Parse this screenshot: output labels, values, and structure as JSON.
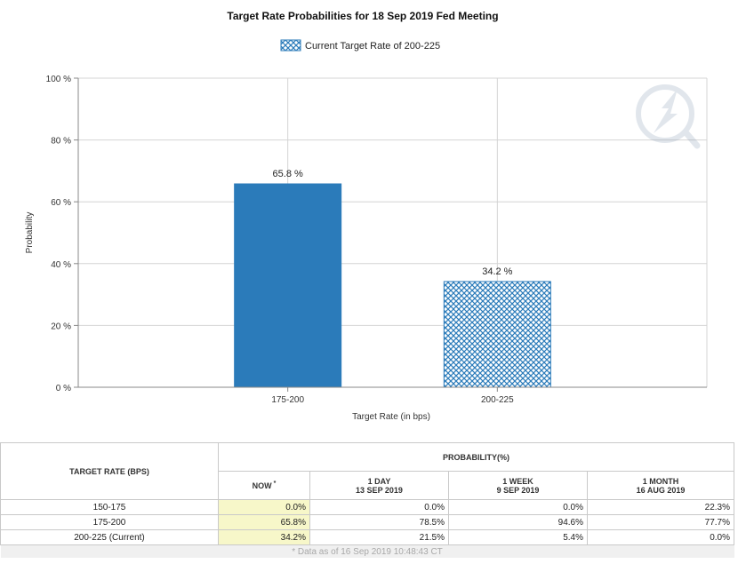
{
  "chart_data": {
    "type": "bar",
    "title": "Target Rate Probabilities for 18 Sep 2019 Fed Meeting",
    "xlabel": "Target Rate (in bps)",
    "ylabel": "Probability",
    "ylim": [
      0,
      100
    ],
    "yticks": [
      0,
      20,
      40,
      60,
      80,
      100
    ],
    "ytick_suffix": " %",
    "categories": [
      "175-200",
      "200-225"
    ],
    "values": [
      65.8,
      34.2
    ],
    "data_labels": [
      "65.8 %",
      "34.2 %"
    ],
    "bar_styles": [
      "solid",
      "hatched"
    ],
    "legend": {
      "label": "Current Target Rate of 200-225",
      "position": "top-center"
    },
    "grid": true,
    "colors": {
      "bar": "#2b7bba",
      "hatch_bg": "#ffffff",
      "grid": "#d4d4d4"
    }
  },
  "table": {
    "target_header": "TARGET RATE (BPS)",
    "probability_header": "PROBABILITY(%)",
    "columns": [
      {
        "line1": "NOW",
        "line2": "",
        "marker": "*"
      },
      {
        "line1": "1 DAY",
        "line2": "13 SEP 2019",
        "marker": ""
      },
      {
        "line1": "1 WEEK",
        "line2": "9 SEP 2019",
        "marker": ""
      },
      {
        "line1": "1 MONTH",
        "line2": "16 AUG 2019",
        "marker": ""
      }
    ],
    "rows": [
      {
        "label": "150-175",
        "values": [
          "0.0%",
          "0.0%",
          "0.0%",
          "22.3%"
        ]
      },
      {
        "label": "175-200",
        "values": [
          "65.8%",
          "78.5%",
          "94.6%",
          "77.7%"
        ]
      },
      {
        "label": "200-225 (Current)",
        "values": [
          "34.2%",
          "21.5%",
          "5.4%",
          "0.0%"
        ]
      }
    ],
    "footnote": "* Data as of 16 Sep 2019 10:48:43 CT"
  }
}
